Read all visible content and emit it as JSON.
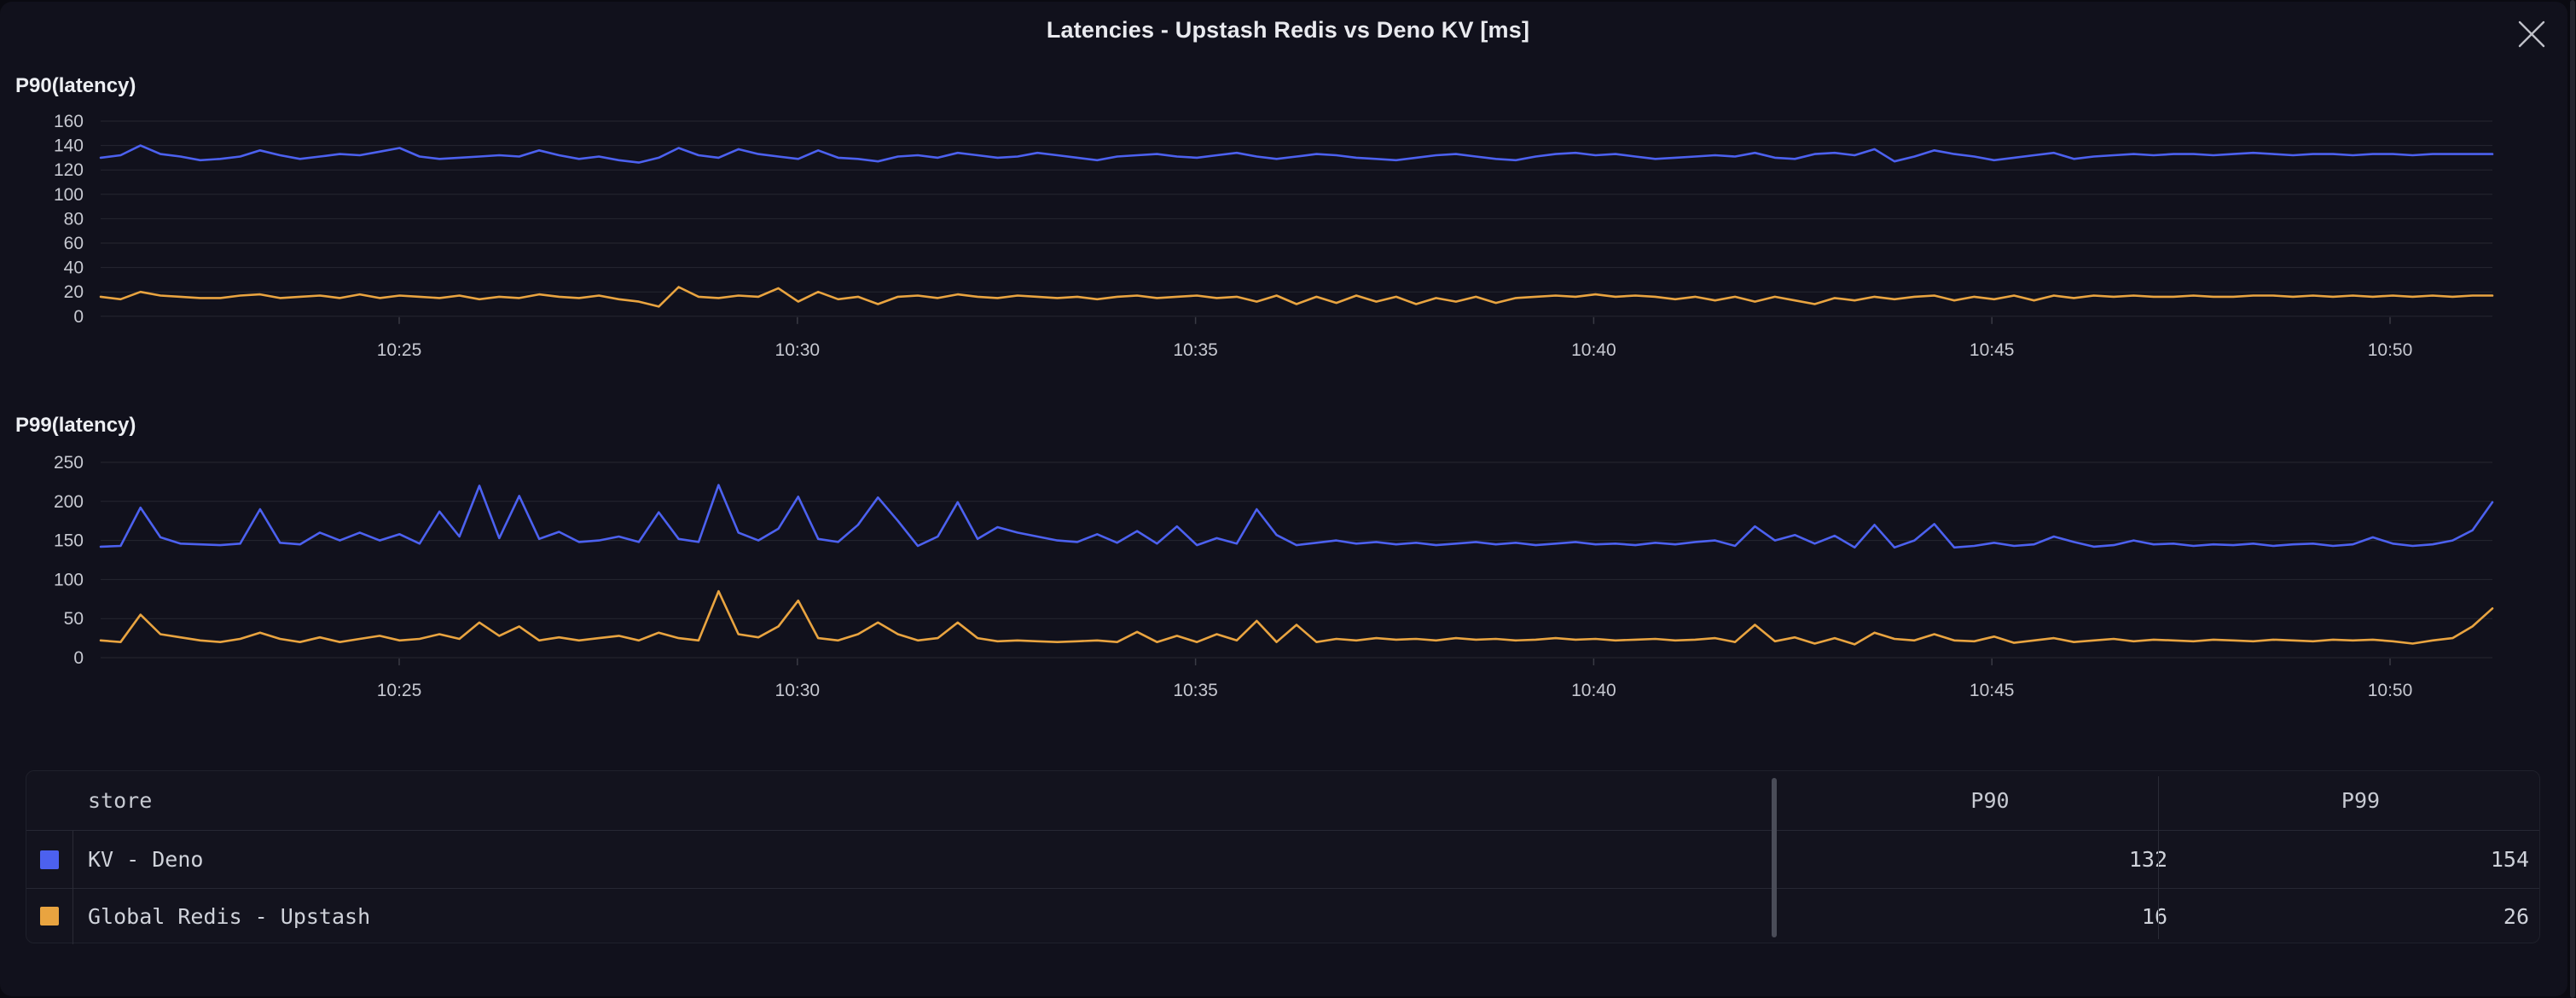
{
  "header": {
    "title": "Latencies - Upstash Redis vs Deno KV [ms]",
    "close_icon": "x-close-icon"
  },
  "colors": {
    "kv_deno_blue": "#4c61ef",
    "upstash_orange": "#e9a440",
    "gridline": "#262730",
    "axis_text": "#c6c8d0",
    "tick_mark": "#3a3b45"
  },
  "chart_data": [
    {
      "type": "line",
      "title": "P90(latency)",
      "xlabel": "",
      "ylabel": "",
      "ylim": [
        0,
        160
      ],
      "grid": "horizontal",
      "legend": "none",
      "y_tick_labels": [
        160,
        140,
        120,
        100,
        80,
        60,
        40,
        20,
        0
      ],
      "x_tick_labels": [
        "10:25",
        "10:30",
        "10:35",
        "10:40",
        "10:45",
        "10:50"
      ],
      "series": [
        {
          "name": "KV - Deno",
          "color": "#4c61ef",
          "values": [
            130,
            132,
            140,
            133,
            131,
            128,
            129,
            131,
            136,
            132,
            129,
            131,
            133,
            132,
            135,
            138,
            131,
            129,
            130,
            131,
            132,
            131,
            136,
            132,
            129,
            131,
            128,
            126,
            130,
            138,
            132,
            130,
            137,
            133,
            131,
            129,
            136,
            130,
            129,
            127,
            131,
            132,
            130,
            134,
            132,
            130,
            131,
            134,
            132,
            130,
            128,
            131,
            132,
            133,
            131,
            130,
            132,
            134,
            131,
            129,
            131,
            133,
            132,
            130,
            129,
            128,
            130,
            132,
            133,
            131,
            129,
            128,
            131,
            133,
            134,
            132,
            133,
            131,
            129,
            130,
            131,
            132,
            131,
            134,
            130,
            129,
            133,
            134,
            132,
            137,
            127,
            131,
            136,
            133,
            131,
            128,
            130,
            132,
            134,
            129,
            131,
            132,
            133,
            132,
            133,
            133,
            132,
            133,
            134,
            133,
            132,
            133,
            133,
            132,
            133,
            133,
            132,
            133,
            133,
            133,
            133
          ]
        },
        {
          "name": "Global Redis - Upstash",
          "color": "#e9a440",
          "values": [
            16,
            14,
            20,
            17,
            16,
            15,
            15,
            17,
            18,
            15,
            16,
            17,
            15,
            18,
            15,
            17,
            16,
            15,
            17,
            14,
            16,
            15,
            18,
            16,
            15,
            17,
            14,
            12,
            8,
            24,
            16,
            15,
            17,
            16,
            23,
            12,
            20,
            14,
            16,
            10,
            16,
            17,
            15,
            18,
            16,
            15,
            17,
            16,
            15,
            16,
            14,
            16,
            17,
            15,
            16,
            17,
            15,
            16,
            12,
            17,
            10,
            16,
            11,
            17,
            12,
            16,
            10,
            15,
            12,
            16,
            11,
            15,
            16,
            17,
            16,
            18,
            16,
            17,
            16,
            14,
            16,
            13,
            16,
            12,
            16,
            13,
            10,
            15,
            13,
            16,
            14,
            16,
            17,
            13,
            16,
            14,
            17,
            13,
            17,
            15,
            17,
            16,
            17,
            16,
            16,
            17,
            16,
            16,
            17,
            17,
            16,
            17,
            16,
            17,
            16,
            17,
            16,
            17,
            16,
            17,
            17
          ]
        }
      ]
    },
    {
      "type": "line",
      "title": "P99(latency)",
      "xlabel": "",
      "ylabel": "",
      "ylim": [
        0,
        250
      ],
      "grid": "horizontal",
      "legend": "none",
      "y_tick_labels": [
        250,
        200,
        150,
        100,
        50,
        0
      ],
      "x_tick_labels": [
        "10:25",
        "10:30",
        "10:35",
        "10:40",
        "10:45",
        "10:50"
      ],
      "series": [
        {
          "name": "KV - Deno",
          "color": "#4c61ef",
          "values": [
            142,
            143,
            192,
            154,
            146,
            145,
            144,
            146,
            190,
            147,
            145,
            160,
            150,
            160,
            150,
            158,
            146,
            187,
            155,
            220,
            153,
            207,
            152,
            161,
            148,
            150,
            155,
            148,
            186,
            152,
            148,
            221,
            160,
            150,
            165,
            206,
            152,
            148,
            170,
            205,
            175,
            143,
            155,
            199,
            152,
            167,
            160,
            155,
            150,
            148,
            158,
            147,
            162,
            146,
            168,
            144,
            153,
            146,
            190,
            157,
            144,
            147,
            150,
            146,
            148,
            145,
            147,
            144,
            146,
            148,
            145,
            147,
            144,
            146,
            148,
            145,
            146,
            144,
            147,
            145,
            148,
            150,
            143,
            168,
            150,
            157,
            146,
            156,
            141,
            170,
            141,
            150,
            171,
            141,
            143,
            147,
            143,
            145,
            155,
            148,
            142,
            144,
            150,
            145,
            146,
            143,
            145,
            144,
            146,
            143,
            145,
            146,
            143,
            145,
            154,
            146,
            143,
            145,
            150,
            163,
            199
          ]
        },
        {
          "name": "Global Redis - Upstash",
          "color": "#e9a440",
          "values": [
            22,
            20,
            55,
            30,
            26,
            22,
            20,
            24,
            32,
            24,
            20,
            26,
            20,
            24,
            28,
            22,
            24,
            30,
            24,
            45,
            28,
            40,
            22,
            26,
            22,
            25,
            28,
            22,
            32,
            25,
            22,
            85,
            30,
            26,
            40,
            73,
            25,
            22,
            30,
            45,
            30,
            22,
            25,
            45,
            25,
            21,
            22,
            21,
            20,
            21,
            22,
            20,
            33,
            20,
            28,
            20,
            30,
            22,
            47,
            20,
            42,
            20,
            24,
            22,
            25,
            23,
            24,
            22,
            25,
            23,
            24,
            22,
            23,
            25,
            23,
            24,
            22,
            23,
            24,
            22,
            23,
            25,
            20,
            42,
            21,
            26,
            18,
            25,
            17,
            32,
            24,
            22,
            30,
            22,
            21,
            27,
            19,
            22,
            25,
            20,
            22,
            24,
            21,
            23,
            22,
            21,
            23,
            22,
            21,
            23,
            22,
            21,
            23,
            22,
            23,
            21,
            18,
            22,
            25,
            40,
            63
          ]
        }
      ]
    }
  ],
  "table": {
    "columns": [
      "store",
      "P90",
      "P99"
    ],
    "rows": [
      {
        "swatch_color": "#4c61ef",
        "store": "KV - Deno",
        "p90": "132",
        "p99": "154"
      },
      {
        "swatch_color": "#e9a440",
        "store": "Global Redis - Upstash",
        "p90": "16",
        "p99": "26"
      }
    ]
  }
}
